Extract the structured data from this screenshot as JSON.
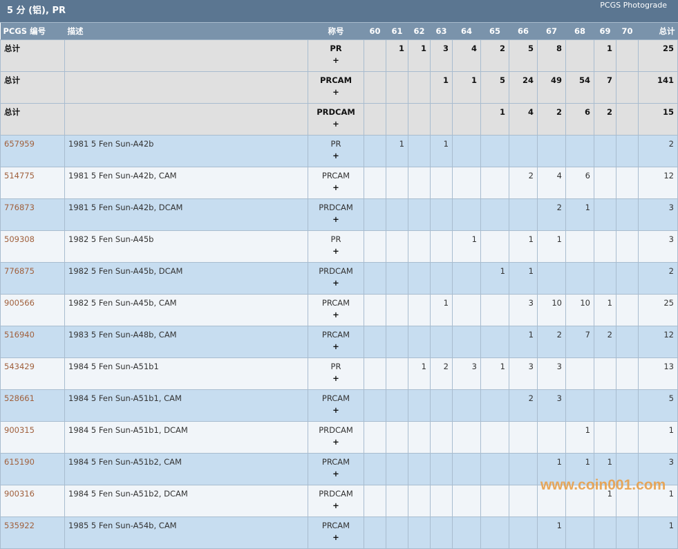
{
  "header": {
    "title": "5 分 (铝), PR",
    "subtitle": "PCGS Photograde"
  },
  "columns": [
    "PCGS 编号",
    "描述",
    "称号",
    "60",
    "61",
    "62",
    "63",
    "64",
    "65",
    "66",
    "67",
    "68",
    "69",
    "70",
    "总计"
  ],
  "plus_label": "+",
  "totals": [
    {
      "label": "总计",
      "designation": "PR",
      "counts": [
        "",
        "1",
        "1",
        "3",
        "4",
        "2",
        "5",
        "8",
        "",
        "1",
        ""
      ],
      "total": "25"
    },
    {
      "label": "总计",
      "designation": "PRCAM",
      "counts": [
        "",
        "",
        "",
        "1",
        "1",
        "5",
        "24",
        "49",
        "54",
        "7",
        ""
      ],
      "total": "141"
    },
    {
      "label": "总计",
      "designation": "PRDCAM",
      "counts": [
        "",
        "",
        "",
        "",
        "",
        "1",
        "4",
        "2",
        "6",
        "2",
        ""
      ],
      "total": "15"
    }
  ],
  "rows": [
    {
      "code": "657959",
      "desc": "1981 5 Fen Sun-A42b",
      "designation": "PR",
      "counts": [
        "",
        "1",
        "",
        "1",
        "",
        "",
        "",
        "",
        "",
        "",
        ""
      ],
      "total": "2"
    },
    {
      "code": "514775",
      "desc": "1981 5 Fen Sun-A42b, CAM",
      "designation": "PRCAM",
      "counts": [
        "",
        "",
        "",
        "",
        "",
        "",
        "2",
        "4",
        "6",
        "",
        ""
      ],
      "total": "12"
    },
    {
      "code": "776873",
      "desc": "1981 5 Fen Sun-A42b, DCAM",
      "designation": "PRDCAM",
      "counts": [
        "",
        "",
        "",
        "",
        "",
        "",
        "",
        "2",
        "1",
        "",
        ""
      ],
      "total": "3"
    },
    {
      "code": "509308",
      "desc": "1982 5 Fen Sun-A45b",
      "designation": "PR",
      "counts": [
        "",
        "",
        "",
        "",
        "1",
        "",
        "1",
        "1",
        "",
        "",
        ""
      ],
      "total": "3"
    },
    {
      "code": "776875",
      "desc": "1982 5 Fen Sun-A45b, DCAM",
      "designation": "PRDCAM",
      "counts": [
        "",
        "",
        "",
        "",
        "",
        "1",
        "1",
        "",
        "",
        "",
        ""
      ],
      "total": "2"
    },
    {
      "code": "900566",
      "desc": "1982 5 Fen Sun-A45b, CAM",
      "designation": "PRCAM",
      "counts": [
        "",
        "",
        "",
        "1",
        "",
        "",
        "3",
        "10",
        "10",
        "1",
        ""
      ],
      "total": "25"
    },
    {
      "code": "516940",
      "desc": "1983 5 Fen Sun-A48b, CAM",
      "designation": "PRCAM",
      "counts": [
        "",
        "",
        "",
        "",
        "",
        "",
        "1",
        "2",
        "7",
        "2",
        ""
      ],
      "total": "12"
    },
    {
      "code": "543429",
      "desc": "1984 5 Fen Sun-A51b1",
      "designation": "PR",
      "counts": [
        "",
        "",
        "1",
        "2",
        "3",
        "1",
        "3",
        "3",
        "",
        "",
        ""
      ],
      "total": "13"
    },
    {
      "code": "528661",
      "desc": "1984 5 Fen Sun-A51b1, CAM",
      "designation": "PRCAM",
      "counts": [
        "",
        "",
        "",
        "",
        "",
        "",
        "2",
        "3",
        "",
        "",
        ""
      ],
      "total": "5"
    },
    {
      "code": "900315",
      "desc": "1984 5 Fen Sun-A51b1, DCAM",
      "designation": "PRDCAM",
      "counts": [
        "",
        "",
        "",
        "",
        "",
        "",
        "",
        "",
        "1",
        "",
        ""
      ],
      "total": "1"
    },
    {
      "code": "615190",
      "desc": "1984 5 Fen Sun-A51b2, CAM",
      "designation": "PRCAM",
      "counts": [
        "",
        "",
        "",
        "",
        "",
        "",
        "",
        "1",
        "1",
        "1",
        ""
      ],
      "total": "3"
    },
    {
      "code": "900316",
      "desc": "1984 5 Fen Sun-A51b2, DCAM",
      "designation": "PRDCAM",
      "counts": [
        "",
        "",
        "",
        "",
        "",
        "",
        "",
        "",
        "",
        "1",
        ""
      ],
      "total": "1"
    },
    {
      "code": "535922",
      "desc": "1985 5 Fen Sun-A54b, CAM",
      "designation": "PRCAM",
      "counts": [
        "",
        "",
        "",
        "",
        "",
        "",
        "",
        "1",
        "",
        "",
        ""
      ],
      "total": "1"
    }
  ],
  "watermark": "www.coin001.com",
  "colors": {
    "title_bar": "#5b7691",
    "header_row": "#7a93ab",
    "total_row": "#e0e0e0",
    "row_odd": "#c7ddf0",
    "row_even": "#f1f5f9",
    "link": "#a0603c",
    "watermark": "#e9a04a"
  }
}
